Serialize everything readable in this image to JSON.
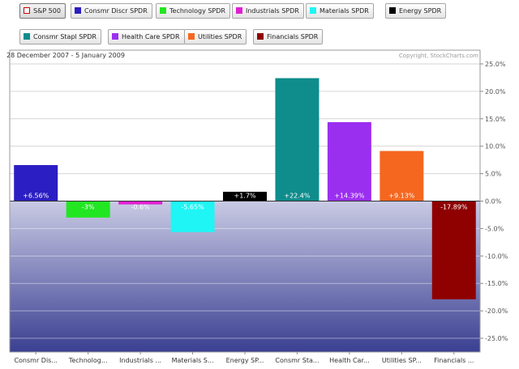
{
  "legend": [
    {
      "label": "S&P 500",
      "color": "#cc0000",
      "selected": true
    },
    {
      "label": "Consmr Discr SPDR",
      "color": "#2b1ec2"
    },
    {
      "label": "Technology SPDR",
      "color": "#22e622"
    },
    {
      "label": "Industrials SPDR",
      "color": "#e01fd2"
    },
    {
      "label": "Materials SPDR",
      "color": "#1ff5f5"
    },
    {
      "label": "Energy SPDR",
      "color": "#000000"
    },
    {
      "label": "Consmr Stapl SPDR",
      "color": "#0f8c8c"
    },
    {
      "label": "Health Care SPDR",
      "color": "#9b2ff0"
    },
    {
      "label": "Utilities SPDR",
      "color": "#f5671f"
    },
    {
      "label": "Financials SPDR",
      "color": "#8f0000"
    }
  ],
  "header": {
    "date_range": "28 December 2007 - 5 January 2009",
    "copyright": "Copyright, StockCharts.com"
  },
  "chart_data": {
    "type": "bar",
    "categories": [
      "Consmr Dis...",
      "Technolog...",
      "Industrials ...",
      "Materials S...",
      "Energy SP...",
      "Consmr Sta...",
      "Health Car...",
      "Utilities SP...",
      "Financials ..."
    ],
    "values": [
      6.56,
      -3.0,
      -0.6,
      -5.65,
      1.7,
      22.4,
      14.39,
      9.13,
      -17.89
    ],
    "data_labels": [
      "+6.56%",
      "-3%",
      "-0.6%",
      "-5.65%",
      "+1.7%",
      "+22.4%",
      "+14.39%",
      "+9.13%",
      "-17.89%"
    ],
    "colors": [
      "#2b1ec2",
      "#22e622",
      "#e01fd2",
      "#1ff5f5",
      "#000000",
      "#0f8c8c",
      "#9b2ff0",
      "#f5671f",
      "#8f0000"
    ],
    "ylim": [
      -27.5,
      27.5
    ],
    "yticks": [
      25,
      20,
      15,
      10,
      5,
      0,
      -5,
      -10,
      -15,
      -20,
      -25
    ],
    "ytick_labels": [
      "25.0%",
      "20.0%",
      "15.0%",
      "10.0%",
      "5.0%",
      "0.0%",
      "-5.0%",
      "-10.0%",
      "-15.0%",
      "-20.0%",
      "-25.0%"
    ],
    "y_axis_position": "right",
    "grid": true
  }
}
